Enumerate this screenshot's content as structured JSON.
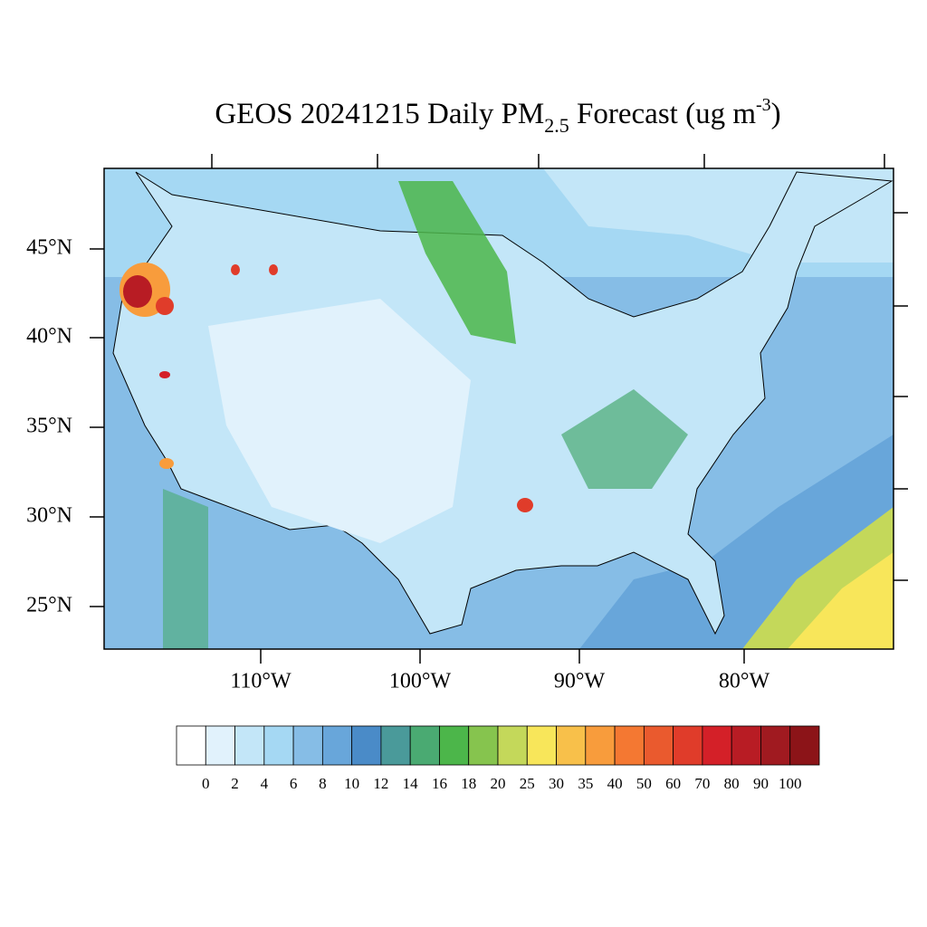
{
  "title": {
    "main": "GEOS 20241215 Daily PM",
    "subscript": "2.5",
    "after": " Forecast (ug m",
    "superscript": "-3",
    "close": ")"
  },
  "latitude_labels": [
    "45°N",
    "40°N",
    "35°N",
    "30°N",
    "25°N"
  ],
  "longitude_labels": [
    "110°W",
    "100°W",
    "90°W",
    "80°W"
  ],
  "colorbar": {
    "levels": [
      0,
      2,
      4,
      6,
      8,
      10,
      12,
      14,
      16,
      18,
      20,
      25,
      30,
      35,
      40,
      50,
      60,
      70,
      80,
      90,
      100
    ],
    "colors": [
      "#ffffff",
      "#e1f2fc",
      "#c3e6f8",
      "#a5d8f3",
      "#86bde6",
      "#68a6da",
      "#4a8bc8",
      "#4a9a9a",
      "#4aaa72",
      "#4cb64a",
      "#86c44e",
      "#c4d85a",
      "#f8e65a",
      "#f8c04a",
      "#f89c3c",
      "#f47832",
      "#ea5a2e",
      "#e03c2a",
      "#d42028",
      "#b81c24",
      "#a01a20",
      "#8c1418"
    ]
  }
}
